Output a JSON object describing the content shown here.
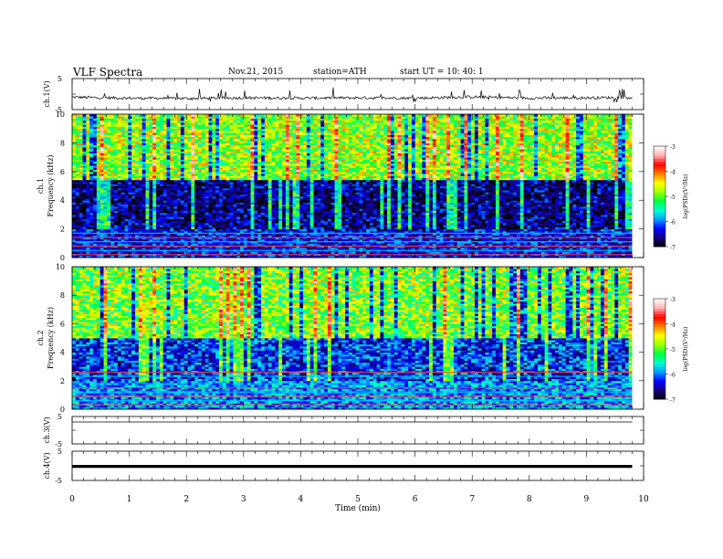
{
  "header": {
    "title": "VLF  Spectra",
    "date": "Nov.21, 2015",
    "station": "station=ATH",
    "start": "start  UT  =    10: 40: 1"
  },
  "colors": {
    "trace": "#000000",
    "axis": "#000000",
    "colormap": [
      "#000000",
      "#1a0080",
      "#0000ff",
      "#00a0ff",
      "#00ffd0",
      "#00ff40",
      "#a0ff00",
      "#ffff00",
      "#ff8000",
      "#ff0000",
      "#ffb0b0",
      "#ffffff"
    ]
  },
  "chart_data": [
    {
      "type": "line",
      "ylabel": "ch.1(V)",
      "ylim": [
        -5,
        5
      ],
      "yticks": [
        "5",
        "-5"
      ],
      "description_values": {
        "baseline_V": -1.2,
        "variation_V": 0.6
      },
      "x": [
        0,
        1,
        2,
        3,
        4,
        5,
        6,
        7,
        8,
        9,
        9.8
      ],
      "y": [
        -1.0,
        -1.3,
        -1.4,
        -1.2,
        -1.3,
        -1.2,
        -1.3,
        -0.9,
        -1.3,
        -1.2,
        -1.1
      ]
    },
    {
      "type": "heatmap",
      "ylabel": "Frequency  (kHz)",
      "channel": "ch.1",
      "ylim": [
        0,
        10
      ],
      "yticks": [
        "0",
        "2",
        "4",
        "6",
        "8",
        "10"
      ],
      "xlim": [
        0,
        9.8
      ],
      "colorbar": {
        "label": "log(PSD)(V²/Hz)",
        "ticks": [
          "-3",
          "-4",
          "-5",
          "-6",
          "-7"
        ],
        "range": [
          -7,
          -3
        ]
      },
      "bands_kHz": {
        "low_noise_lines": [
          0.2,
          0.5,
          0.8,
          1.1,
          1.4,
          1.7
        ],
        "quiet_band": [
          2.0,
          5.5
        ],
        "active_band": [
          5.5,
          10
        ]
      },
      "levels_logPSD": {
        "low_lines": -5.0,
        "quiet": -6.6,
        "active": -4.8
      }
    },
    {
      "type": "heatmap",
      "ylabel": "Frequency  (kHz)",
      "channel": "ch.2",
      "ylim": [
        0,
        10
      ],
      "yticks": [
        "0",
        "2",
        "4",
        "6",
        "8",
        "10"
      ],
      "xlim": [
        0,
        9.8
      ],
      "colorbar": {
        "label": "log(PSD)(V²/Hz)",
        "ticks": [
          "-3",
          "-4",
          "-5",
          "-6",
          "-7"
        ],
        "range": [
          -7,
          -3
        ]
      },
      "bands_kHz": {
        "low_noise_lines": [
          0.3,
          0.6,
          0.9,
          1.2,
          1.5,
          2.3,
          2.6
        ],
        "quiet_band": [
          2.0,
          5.0
        ],
        "active_band": [
          5.0,
          10
        ]
      },
      "levels_logPSD": {
        "low_lines": -5.2,
        "quiet": -6.2,
        "active": -4.9
      }
    },
    {
      "type": "line",
      "ylabel": "ch.3(V)",
      "ylim": [
        -5,
        5
      ],
      "yticks": [
        "5",
        "-5"
      ],
      "x": [
        0,
        9.8
      ],
      "y": [
        3.0,
        3.0
      ]
    },
    {
      "type": "line",
      "ylabel": "ch.4(V)",
      "ylim": [
        -5,
        5
      ],
      "yticks": [
        "5",
        "-5"
      ],
      "x": [
        0,
        9.8
      ],
      "y": [
        -0.2,
        -0.2
      ]
    }
  ],
  "xaxis": {
    "label": "Time  (min)",
    "ticks": [
      "0",
      "1",
      "2",
      "3",
      "4",
      "5",
      "6",
      "7",
      "8",
      "9",
      "10"
    ],
    "xlim": [
      0,
      10
    ]
  }
}
